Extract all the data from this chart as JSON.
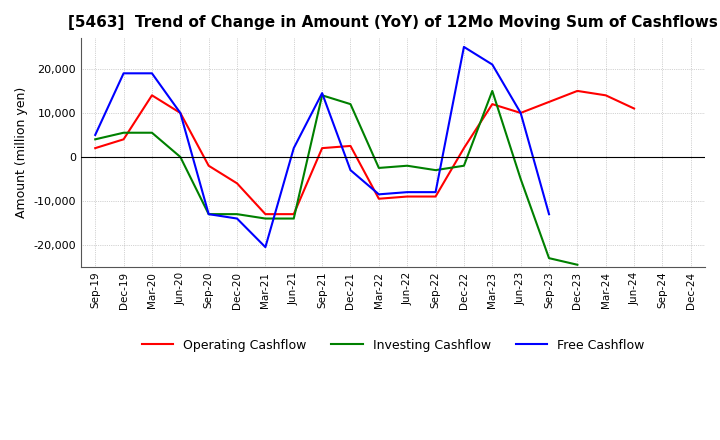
{
  "title": "[5463]  Trend of Change in Amount (YoY) of 12Mo Moving Sum of Cashflows",
  "ylabel": "Amount (million yen)",
  "xlabels": [
    "Sep-19",
    "Dec-19",
    "Mar-20",
    "Jun-20",
    "Sep-20",
    "Dec-20",
    "Mar-21",
    "Jun-21",
    "Sep-21",
    "Dec-21",
    "Mar-22",
    "Jun-22",
    "Sep-22",
    "Dec-22",
    "Mar-23",
    "Jun-23",
    "Sep-23",
    "Dec-23",
    "Mar-24",
    "Jun-24",
    "Sep-24",
    "Dec-24"
  ],
  "operating": [
    2000,
    4000,
    14000,
    10000,
    -2000,
    -6000,
    -13000,
    -13000,
    2000,
    2500,
    -9500,
    -9000,
    -9000,
    2000,
    12000,
    10000,
    12500,
    15000,
    14000,
    11000,
    null,
    null
  ],
  "investing": [
    4000,
    5500,
    5500,
    0,
    -13000,
    -13000,
    -14000,
    -14000,
    14000,
    12000,
    -2500,
    -2000,
    -3000,
    -2000,
    15000,
    -5000,
    -23000,
    -24500,
    null,
    null,
    null,
    null
  ],
  "free": [
    5000,
    19000,
    19000,
    10000,
    -13000,
    -14000,
    -20500,
    2000,
    14500,
    -3000,
    -8500,
    -8000,
    -8000,
    25000,
    21000,
    10000,
    -13000,
    null,
    null,
    null,
    null,
    null
  ],
  "colors": {
    "operating": "#ff0000",
    "investing": "#008000",
    "free": "#0000ff"
  },
  "ylim": [
    -25000,
    27000
  ],
  "yticks": [
    -20000,
    -10000,
    0,
    10000,
    20000
  ],
  "legend_labels": [
    "Operating Cashflow",
    "Investing Cashflow",
    "Free Cashflow"
  ],
  "background_color": "#ffffff",
  "grid_color": "#aaaaaa"
}
